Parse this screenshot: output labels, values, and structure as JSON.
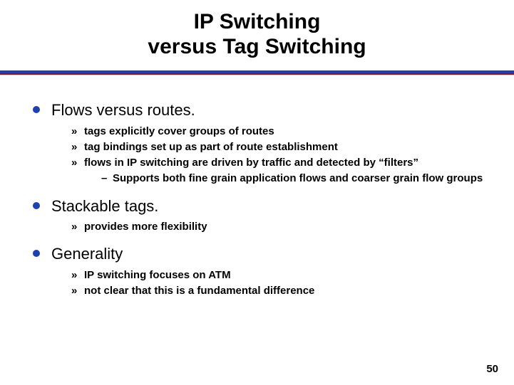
{
  "title": {
    "line1": "IP Switching",
    "line2": "versus Tag Switching",
    "fontsize": 30,
    "color": "#000000"
  },
  "rule": {
    "top_color": "#1f3fb5",
    "bottom_color": "#c00000",
    "top_height": 4,
    "bottom_height": 2
  },
  "bullets": [
    {
      "text": "Flows versus routes.",
      "sub": [
        {
          "text": "tags explicitly cover groups of routes"
        },
        {
          "text": "tag bindings set up as part of route establishment"
        },
        {
          "text": "flows in IP switching are driven by traffic and detected by “filters”",
          "sub": [
            {
              "text": "Supports both fine grain application flows and coarser grain flow groups"
            }
          ]
        }
      ]
    },
    {
      "text": "Stackable tags.",
      "sub": [
        {
          "text": "provides more flexibility"
        }
      ]
    },
    {
      "text": "Generality",
      "sub": [
        {
          "text": "IP switching focuses on ATM"
        },
        {
          "text": "not clear that this is a fundamental difference"
        }
      ]
    }
  ],
  "page_number": "50",
  "style": {
    "l1_bullet_color": "#1f3fb5",
    "l1_fontsize": 22,
    "l2_fontsize": 15,
    "l3_fontsize": 15,
    "background_color": "#ffffff",
    "text_color": "#000000"
  }
}
